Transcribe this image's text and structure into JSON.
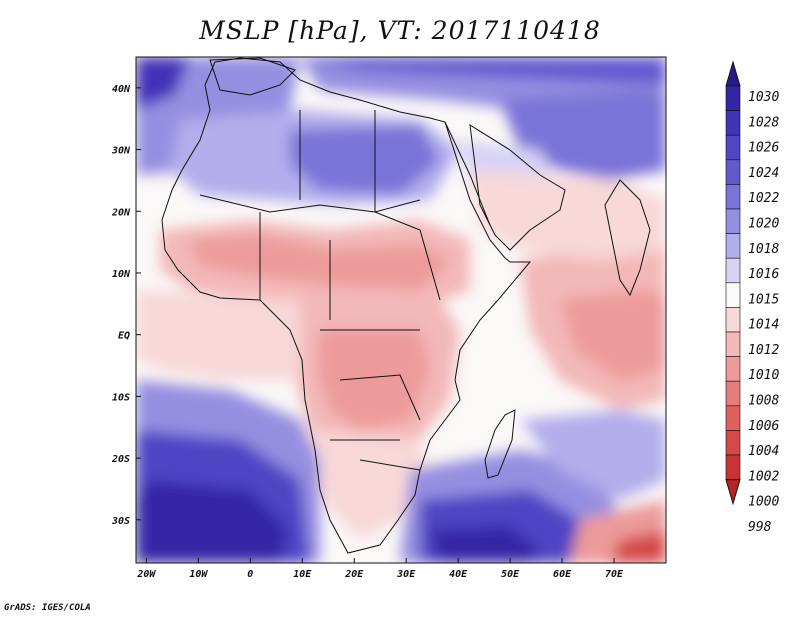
{
  "title": "MSLP [hPa], VT: 2017110418",
  "credit": "GrADS: IGES/COLA",
  "map": {
    "region": "Africa and Arabian Sea",
    "lon_range": [
      -22,
      80
    ],
    "lat_range": [
      -37,
      45
    ],
    "lon_ticks": [
      {
        "value": -20,
        "label": "20W"
      },
      {
        "value": -10,
        "label": "10W"
      },
      {
        "value": 0,
        "label": "0"
      },
      {
        "value": 10,
        "label": "10E"
      },
      {
        "value": 20,
        "label": "20E"
      },
      {
        "value": 30,
        "label": "30E"
      },
      {
        "value": 40,
        "label": "40E"
      },
      {
        "value": 50,
        "label": "50E"
      },
      {
        "value": 60,
        "label": "60E"
      },
      {
        "value": 70,
        "label": "70E"
      }
    ],
    "lat_ticks": [
      {
        "value": 40,
        "label": "40N"
      },
      {
        "value": 30,
        "label": "30N"
      },
      {
        "value": 20,
        "label": "20N"
      },
      {
        "value": 10,
        "label": "10N"
      },
      {
        "value": 0,
        "label": "EQ"
      },
      {
        "value": -10,
        "label": "10S"
      },
      {
        "value": -20,
        "label": "20S"
      },
      {
        "value": -30,
        "label": "30S"
      }
    ],
    "pressure_regions": [
      {
        "name": "south-atlantic-high",
        "value": 1026
      },
      {
        "name": "south-indian-high",
        "value": 1026
      },
      {
        "name": "southwest-atlantic-high",
        "value": 1030
      },
      {
        "name": "mediterranean-high",
        "value": 1018
      },
      {
        "name": "sahara-high",
        "value": 1016
      },
      {
        "name": "arabia-ridge",
        "value": 1015
      },
      {
        "name": "iran-high",
        "value": 1020
      },
      {
        "name": "sahel-trough",
        "value": 1010
      },
      {
        "name": "congo-trough",
        "value": 1009
      },
      {
        "name": "central-indian-ocean-trough",
        "value": 1010
      },
      {
        "name": "southeast-low",
        "value": 1000
      }
    ]
  },
  "colorbar": {
    "levels": [
      {
        "label": "1030",
        "color": "#281a8c"
      },
      {
        "label": "1028",
        "color": "#3525a6"
      },
      {
        "label": "1026",
        "color": "#4233b8"
      },
      {
        "label": "1024",
        "color": "#5045c4"
      },
      {
        "label": "1022",
        "color": "#6359ce"
      },
      {
        "label": "1020",
        "color": "#7a73d8"
      },
      {
        "label": "1018",
        "color": "#958fe1"
      },
      {
        "label": "1016",
        "color": "#b3aeec"
      },
      {
        "label": "1015",
        "color": "#d6d3f5"
      },
      {
        "label": "1014",
        "color": "#fbf8f8"
      },
      {
        "label": "1012",
        "color": "#f8d8d8"
      },
      {
        "label": "1010",
        "color": "#f3b8b8"
      },
      {
        "label": "1008",
        "color": "#ed9a9a"
      },
      {
        "label": "1006",
        "color": "#e57d7d"
      },
      {
        "label": "1004",
        "color": "#dd6161"
      },
      {
        "label": "1002",
        "color": "#d44848"
      },
      {
        "label": "1000",
        "color": "#c83434"
      },
      {
        "label": "998",
        "color": "#b82323"
      }
    ]
  }
}
